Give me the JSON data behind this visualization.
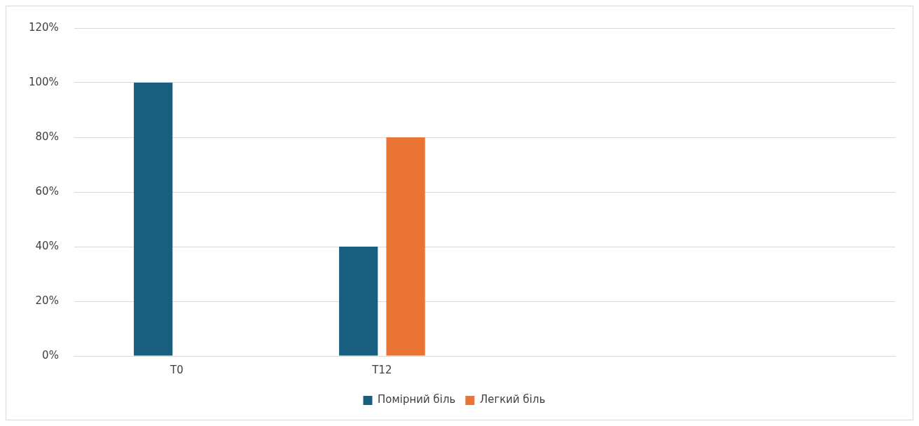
{
  "chart_data": {
    "type": "bar",
    "categories": [
      "T0",
      "T12",
      null,
      null
    ],
    "series": [
      {
        "name": "Помірний біль",
        "color": "#175e7f",
        "values": [
          100,
          40,
          null,
          null
        ]
      },
      {
        "name": "Легкий біль",
        "color": "#ea7433",
        "values": [
          0,
          80,
          null,
          null
        ]
      }
    ],
    "ylim": [
      0,
      120
    ],
    "yticks": [
      {
        "value": 0,
        "label": "0%"
      },
      {
        "value": 20,
        "label": "20%"
      },
      {
        "value": 40,
        "label": "40%"
      },
      {
        "value": 60,
        "label": "60%"
      },
      {
        "value": 80,
        "label": "80%"
      },
      {
        "value": 100,
        "label": "100%"
      },
      {
        "value": 120,
        "label": "120%"
      }
    ],
    "grid": "y",
    "legend": "bottom"
  }
}
